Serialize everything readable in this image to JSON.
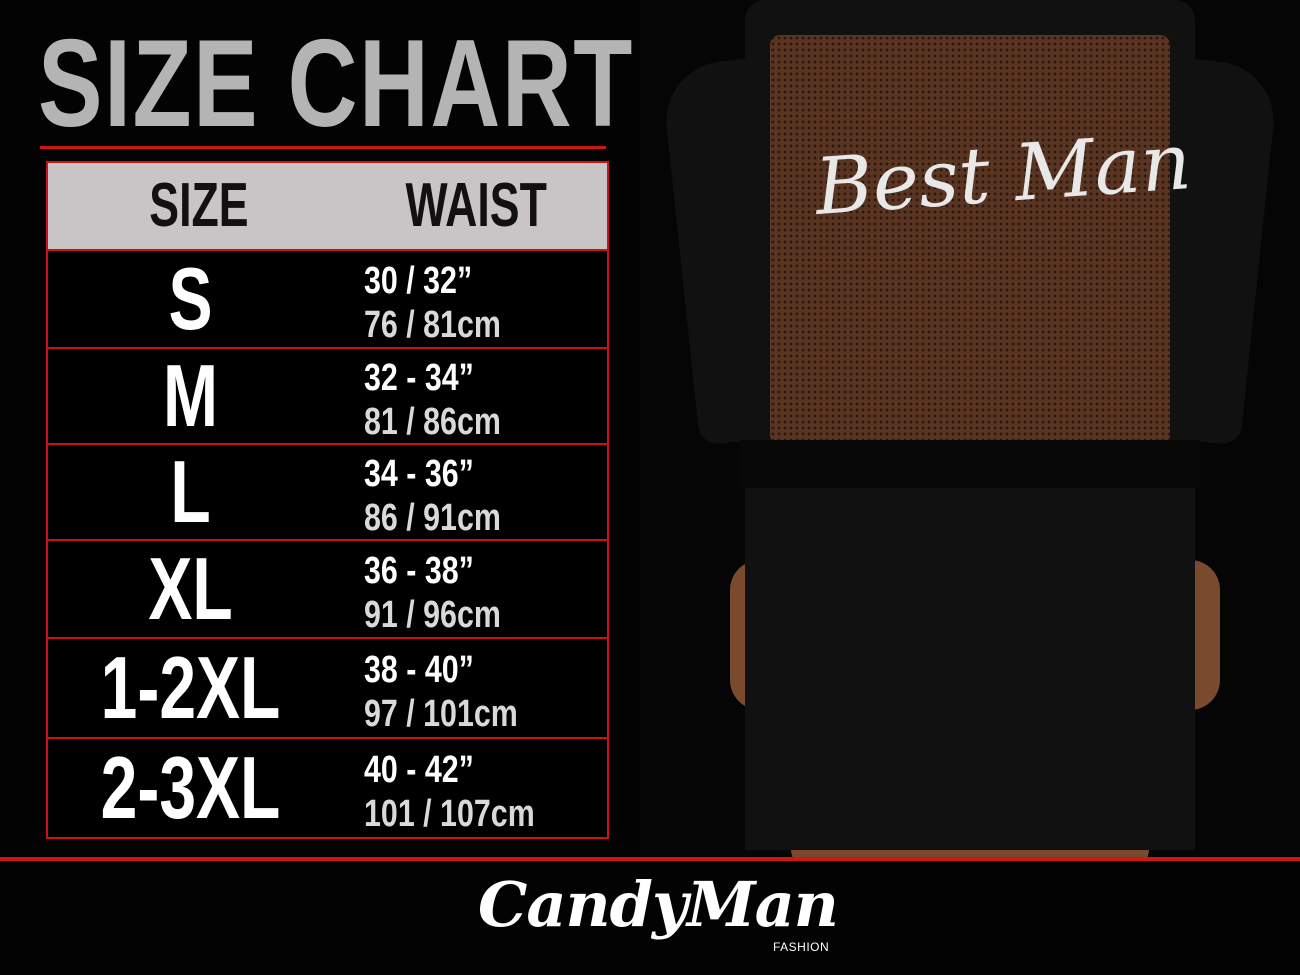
{
  "title": "SIZE CHART",
  "table": {
    "headers": {
      "size": "SIZE",
      "waist": "WAIST"
    },
    "rows": [
      {
        "size": "S",
        "inches": "30 / 32”",
        "cm": "76 / 81cm"
      },
      {
        "size": "M",
        "inches": "32 - 34”",
        "cm": "81 / 86cm"
      },
      {
        "size": "L",
        "inches": "34 - 36”",
        "cm": "86 / 91cm"
      },
      {
        "size": "XL",
        "inches": "36 - 38”",
        "cm": "91 / 96cm"
      },
      {
        "size": "1-2XL",
        "inches": "38 - 40”",
        "cm": "97 / 101cm"
      },
      {
        "size": "2-3XL",
        "inches": "40 - 42”",
        "cm": "101 / 107cm"
      }
    ]
  },
  "product_print": "Best Man",
  "logo": {
    "brand": "CandyMan",
    "sub": "FASHION"
  },
  "colors": {
    "accent": "#d01515",
    "header_bg": "#c9c5c6",
    "title": "#b4b4b4",
    "background": "#030303"
  }
}
